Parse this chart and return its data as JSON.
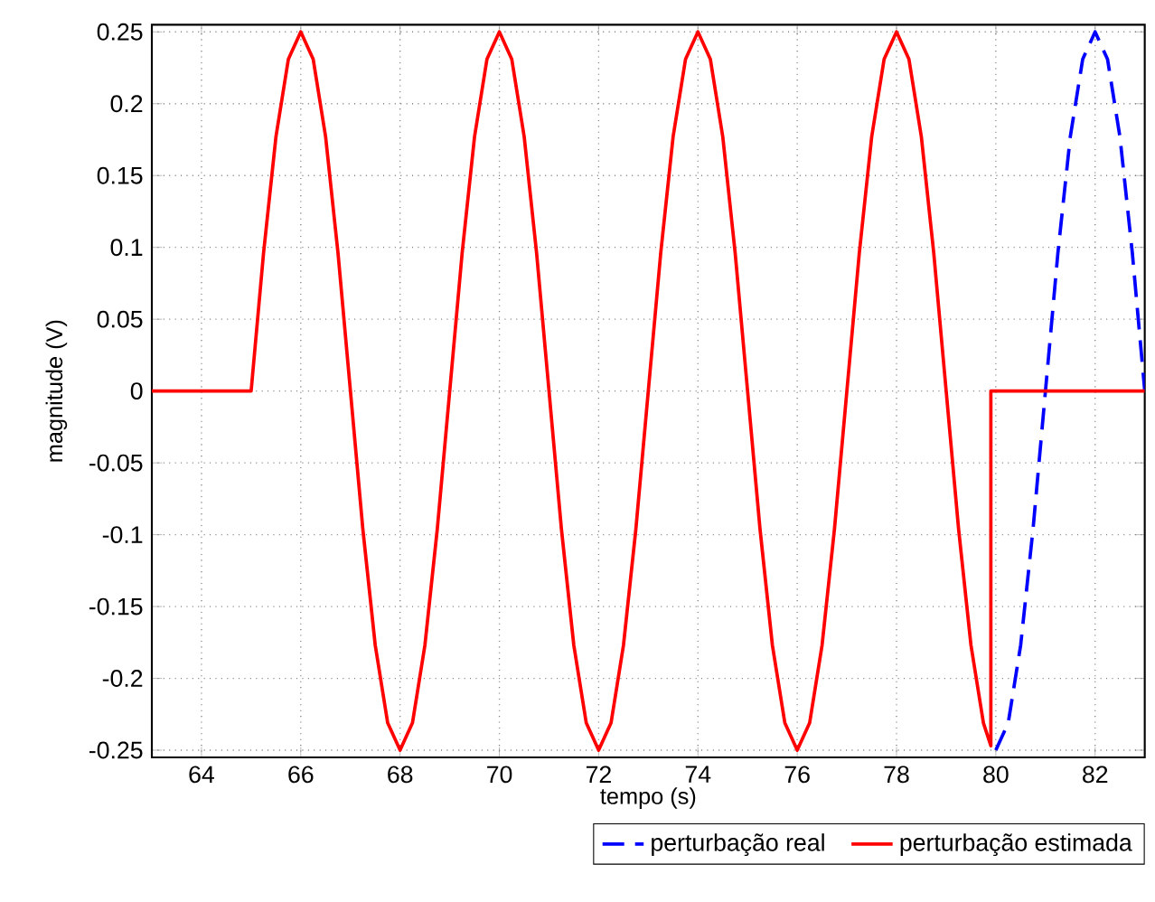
{
  "chart_data": {
    "type": "line",
    "xlabel": "tempo (s)",
    "ylabel": "magnitude (V)",
    "xlim": [
      63,
      83
    ],
    "ylim": [
      -0.255,
      0.255
    ],
    "xticks": [
      64,
      66,
      68,
      70,
      72,
      74,
      76,
      78,
      80,
      82
    ],
    "yticks": [
      -0.25,
      -0.2,
      -0.15,
      -0.1,
      -0.05,
      0,
      0.05,
      0.1,
      0.15,
      0.2,
      0.25
    ],
    "grid": true,
    "legend": "bottom right",
    "series": [
      {
        "name": "perturbação real",
        "color": "#0000ff",
        "line_style": "dashed",
        "x": [
          80,
          80.25,
          80.5,
          80.75,
          81,
          81.25,
          81.5,
          81.75,
          82,
          82.25,
          82.5,
          82.75,
          83
        ],
        "values": [
          -0.25,
          -0.231,
          -0.177,
          -0.096,
          0,
          0.096,
          0.177,
          0.231,
          0.25,
          0.231,
          0.177,
          0.096,
          0
        ]
      },
      {
        "name": "perturbação estimada",
        "color": "#ff0000",
        "line_style": "solid",
        "x": [
          63,
          65,
          65.25,
          65.5,
          65.75,
          66,
          66.25,
          66.5,
          66.75,
          67,
          67.25,
          67.5,
          67.75,
          68,
          68.25,
          68.5,
          68.75,
          69,
          69.25,
          69.5,
          69.75,
          70,
          70.25,
          70.5,
          70.75,
          71,
          71.25,
          71.5,
          71.75,
          72,
          72.25,
          72.5,
          72.75,
          73,
          73.25,
          73.5,
          73.75,
          74,
          74.25,
          74.5,
          74.75,
          75,
          75.25,
          75.5,
          75.75,
          76,
          76.25,
          76.5,
          76.75,
          77,
          77.25,
          77.5,
          77.75,
          78,
          78.25,
          78.5,
          78.75,
          79,
          79.25,
          79.5,
          79.75,
          79.9,
          79.9,
          83
        ],
        "values": [
          0,
          0,
          0.096,
          0.177,
          0.231,
          0.25,
          0.231,
          0.177,
          0.096,
          0,
          -0.096,
          -0.177,
          -0.231,
          -0.25,
          -0.231,
          -0.177,
          -0.096,
          0,
          0.096,
          0.177,
          0.231,
          0.25,
          0.231,
          0.177,
          0.096,
          0,
          -0.096,
          -0.177,
          -0.231,
          -0.25,
          -0.231,
          -0.177,
          -0.096,
          0,
          0.096,
          0.177,
          0.231,
          0.25,
          0.231,
          0.177,
          0.096,
          0,
          -0.096,
          -0.177,
          -0.231,
          -0.25,
          -0.231,
          -0.177,
          -0.096,
          0,
          0.096,
          0.177,
          0.231,
          0.25,
          0.231,
          0.177,
          0.096,
          0,
          -0.096,
          -0.177,
          -0.231,
          -0.247,
          0,
          0
        ]
      }
    ]
  }
}
